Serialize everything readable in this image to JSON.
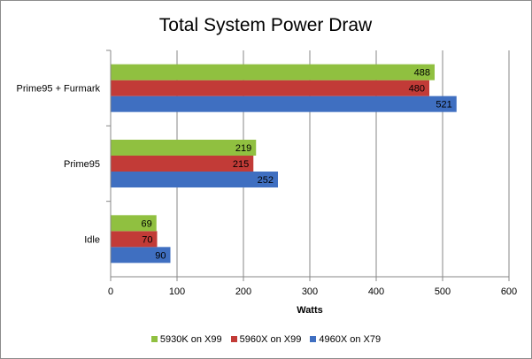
{
  "chart_data": {
    "type": "bar",
    "orientation": "horizontal",
    "title": "Total System Power Draw",
    "xlabel": "Watts",
    "ylabel": "",
    "categories": [
      "Idle",
      "Prime95",
      "Prime95 + Furmark"
    ],
    "series": [
      {
        "name": "4960X on X79",
        "color": "#3f6fc1",
        "values": [
          90,
          252,
          521
        ]
      },
      {
        "name": "5960X on X99",
        "color": "#c23b37",
        "values": [
          70,
          215,
          480
        ]
      },
      {
        "name": "5930K on X99",
        "color": "#90c040",
        "values": [
          69,
          219,
          488
        ]
      }
    ],
    "xlim": [
      0,
      600
    ],
    "xticks": [
      0,
      100,
      200,
      300,
      400,
      500,
      600
    ],
    "gridlines": "vertical",
    "data_labels": true,
    "legend_position": "bottom",
    "legend_order": [
      "5930K on X99",
      "5960X on X99",
      "4960X on X79"
    ]
  }
}
